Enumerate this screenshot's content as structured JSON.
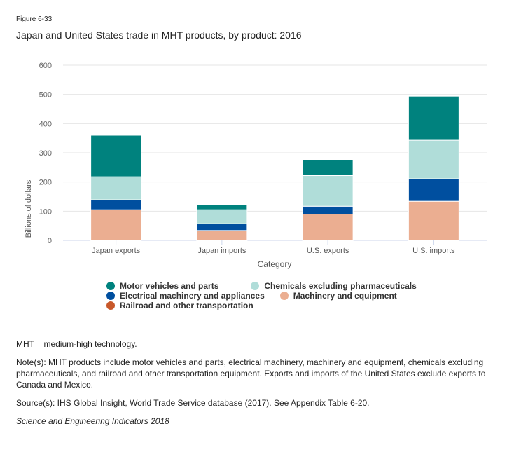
{
  "figure": {
    "label": "Figure 6-33",
    "title": "Japan and United States trade in MHT products, by product: 2016"
  },
  "chart_data": {
    "type": "bar",
    "stacked": true,
    "title": "Japan and United States trade in MHT products, by product: 2016",
    "xlabel": "Category",
    "ylabel": "Billions of dollars",
    "ylim": [
      0,
      600
    ],
    "yticks": [
      0,
      100,
      200,
      300,
      400,
      500,
      600
    ],
    "grid": true,
    "legend_position": "bottom",
    "categories": [
      "Japan exports",
      "Japan imports",
      "U.S. exports",
      "U.S. imports"
    ],
    "series": [
      {
        "name": "Railroad and other transportation",
        "color": "#c8582a",
        "values": [
          1,
          1,
          1,
          1
        ]
      },
      {
        "name": "Machinery and equipment",
        "color": "#ebae91",
        "values": [
          104,
          33,
          89,
          133
        ]
      },
      {
        "name": "Electrical machinery and appliances",
        "color": "#004f9f",
        "values": [
          34,
          23,
          27,
          77
        ]
      },
      {
        "name": "Chemicals excluding pharmaceuticals",
        "color": "#b0ddd9",
        "values": [
          79,
          48,
          105,
          132
        ]
      },
      {
        "name": "Motor vehicles and parts",
        "color": "#00827e",
        "values": [
          142,
          18,
          54,
          151
        ]
      }
    ]
  },
  "legend": {
    "rows": [
      [
        {
          "label": "Motor vehicles and parts",
          "color": "#00827e"
        },
        {
          "label": "Chemicals excluding pharmaceuticals",
          "color": "#b0ddd9"
        }
      ],
      [
        {
          "label": "Electrical machinery and appliances",
          "color": "#004f9f"
        },
        {
          "label": "Machinery and equipment",
          "color": "#ebae91"
        }
      ],
      [
        {
          "label": "Railroad and other transportation",
          "color": "#c8582a"
        }
      ]
    ]
  },
  "notes": {
    "abbrev": "MHT = medium-high technology.",
    "note": "Note(s): MHT products include motor vehicles and parts, electrical machinery, machinery and equipment, chemicals excluding pharmaceuticals, and railroad and other transportation equipment. Exports and imports of the United States exclude exports to Canada and Mexico.",
    "source": "Source(s): IHS Global Insight, World Trade Service database (2017). See Appendix Table 6-20.",
    "credit": "Science and Engineering Indicators 2018"
  }
}
